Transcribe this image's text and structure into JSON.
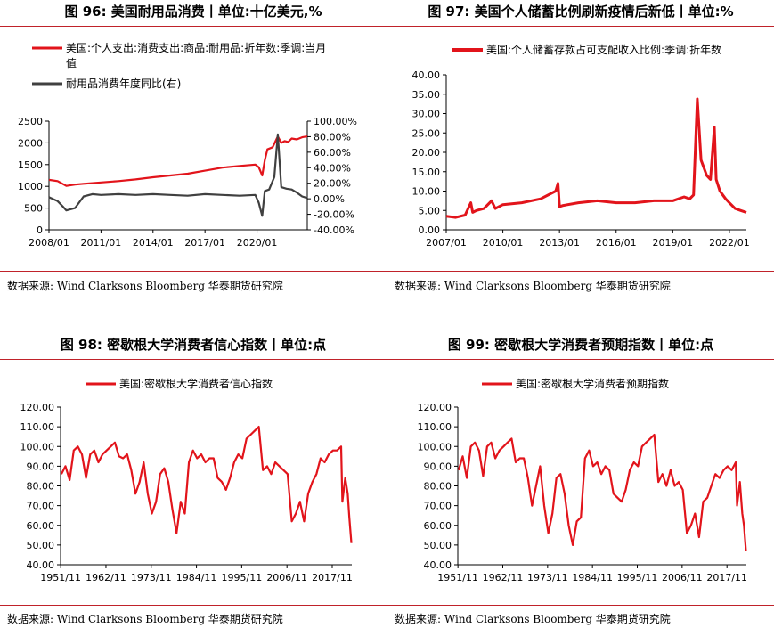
{
  "source_text": "数据来源:   Wind Clarksons Bloomberg 华泰期货研究院",
  "panels": [
    {
      "title": "图 96:   美国耐用品消费丨单位:十亿美元,%"
    },
    {
      "title": "图 97:   美国个人储蓄比例刷新疫情后新低丨单位:%"
    },
    {
      "title": "图 98:   密歇根大学消费者信心指数丨单位:点"
    },
    {
      "title": "图 99:   密歇根大学消费者预期指数丨单位:点"
    }
  ],
  "colors": {
    "red": "#e2141b",
    "dark": "#404040",
    "rule": "#c0222a"
  },
  "chart_data": [
    {
      "type": "line",
      "title": "",
      "x_ticks": [
        "2008/01",
        "2011/01",
        "2014/01",
        "2017/01",
        "2020/01"
      ],
      "xlim": [
        2008.0,
        2022.9
      ],
      "y_ticks": [
        "0",
        "500",
        "1000",
        "1500",
        "2000",
        "2500"
      ],
      "ylim": [
        0,
        2500
      ],
      "y2_ticks": [
        "-40.00%",
        "-20.00%",
        "0.00%",
        "20.00%",
        "40.00%",
        "60.00%",
        "80.00%",
        "100.00%"
      ],
      "y2lim": [
        -40,
        100
      ],
      "legend": "top-left",
      "series": [
        {
          "name": "美国:个人支出:消费支出:商品:耐用品:折年数:季调:当月值",
          "axis": "left",
          "color": "#e2141b",
          "x": [
            2008.0,
            2008.5,
            2009.0,
            2009.5,
            2010.0,
            2011.0,
            2012.0,
            2013.0,
            2014.0,
            2015.0,
            2016.0,
            2017.0,
            2018.0,
            2019.0,
            2019.9,
            2020.1,
            2020.3,
            2020.45,
            2020.6,
            2020.9,
            2021.0,
            2021.2,
            2021.4,
            2021.6,
            2021.8,
            2022.0,
            2022.3,
            2022.6,
            2022.9
          ],
          "y": [
            1150,
            1120,
            1010,
            1040,
            1060,
            1090,
            1120,
            1160,
            1210,
            1250,
            1290,
            1360,
            1430,
            1470,
            1500,
            1440,
            1250,
            1600,
            1850,
            1900,
            1980,
            2150,
            2000,
            2040,
            2020,
            2100,
            2080,
            2130,
            2150
          ]
        },
        {
          "name": "耐用品消费年度同比(右)",
          "axis": "right",
          "color": "#404040",
          "x": [
            2008.0,
            2008.5,
            2008.8,
            2009.0,
            2009.5,
            2010.0,
            2010.5,
            2011.0,
            2012.0,
            2013.0,
            2014.0,
            2015.0,
            2016.0,
            2017.0,
            2018.0,
            2019.0,
            2019.9,
            2020.1,
            2020.3,
            2020.45,
            2020.7,
            2021.0,
            2021.2,
            2021.4,
            2021.7,
            2022.0,
            2022.3,
            2022.6,
            2022.9
          ],
          "y": [
            2,
            -3,
            -10,
            -15,
            -12,
            3,
            6,
            5,
            6,
            5,
            6,
            5,
            4,
            6,
            5,
            4,
            5,
            -5,
            -22,
            10,
            12,
            28,
            83,
            15,
            13,
            12,
            8,
            3,
            1
          ]
        }
      ]
    },
    {
      "type": "line",
      "title": "",
      "x_ticks": [
        "2007/01",
        "2010/01",
        "2013/01",
        "2016/01",
        "2019/01",
        "2022/01"
      ],
      "xlim": [
        2007.0,
        2022.9
      ],
      "y_ticks": [
        "0.00",
        "5.00",
        "10.00",
        "15.00",
        "20.00",
        "25.00",
        "30.00",
        "35.00",
        "40.00"
      ],
      "ylim": [
        0,
        40
      ],
      "legend": "top-center",
      "series": [
        {
          "name": "美国:个人储蓄存款占可支配收入比例:季调:折年数",
          "color": "#e2141b",
          "x": [
            2007.0,
            2007.5,
            2008.0,
            2008.3,
            2008.4,
            2008.6,
            2009.0,
            2009.4,
            2009.6,
            2010.0,
            2011.0,
            2012.0,
            2012.8,
            2012.92,
            2013.0,
            2013.2,
            2014.0,
            2015.0,
            2016.0,
            2017.0,
            2018.0,
            2019.0,
            2019.6,
            2019.9,
            2020.1,
            2020.3,
            2020.5,
            2020.8,
            2021.0,
            2021.2,
            2021.3,
            2021.5,
            2021.8,
            2022.0,
            2022.3,
            2022.6,
            2022.9
          ],
          "y": [
            3.5,
            3.2,
            3.8,
            7.0,
            4.5,
            5.0,
            5.5,
            7.5,
            5.5,
            6.5,
            7.0,
            8.0,
            10.0,
            12.0,
            6.0,
            6.3,
            7.0,
            7.5,
            7.0,
            7.0,
            7.5,
            7.5,
            8.5,
            8.0,
            9.0,
            33.8,
            18.0,
            14.0,
            13.0,
            26.5,
            13.0,
            10.0,
            8.0,
            7.0,
            5.5,
            5.0,
            4.5
          ]
        }
      ]
    },
    {
      "type": "line",
      "title": "",
      "x_ticks": [
        "1951/11",
        "1962/11",
        "1973/11",
        "1984/11",
        "1995/11",
        "2006/11",
        "2017/11"
      ],
      "xlim": [
        1951.8,
        2022.6
      ],
      "y_ticks": [
        "40.00",
        "50.00",
        "60.00",
        "70.00",
        "80.00",
        "90.00",
        "100.00",
        "110.00",
        "120.00"
      ],
      "ylim": [
        40,
        120
      ],
      "legend": "top-center",
      "series": [
        {
          "name": "美国:密歇根大学消费者信心指数",
          "color": "#e2141b",
          "x": [
            1952.0,
            1953.0,
            1954.0,
            1955.0,
            1956.0,
            1957.0,
            1958.0,
            1959.0,
            1960.0,
            1961.0,
            1962.0,
            1963.0,
            1964.0,
            1965.0,
            1966.0,
            1967.0,
            1968.0,
            1969.0,
            1970.0,
            1971.0,
            1972.0,
            1973.0,
            1974.0,
            1975.0,
            1976.0,
            1977.0,
            1978.0,
            1979.0,
            1980.0,
            1981.0,
            1982.0,
            1983.0,
            1984.0,
            1985.0,
            1986.0,
            1987.0,
            1988.0,
            1989.0,
            1990.0,
            1991.0,
            1992.0,
            1993.0,
            1994.0,
            1995.0,
            1996.0,
            1997.0,
            1998.0,
            1999.0,
            2000.0,
            2001.0,
            2002.0,
            2003.0,
            2004.0,
            2005.0,
            2006.0,
            2007.0,
            2008.0,
            2009.0,
            2010.0,
            2011.0,
            2012.0,
            2013.0,
            2014.0,
            2015.0,
            2016.0,
            2017.0,
            2018.0,
            2019.0,
            2020.0,
            2020.3,
            2021.0,
            2021.6,
            2022.0,
            2022.5
          ],
          "y": [
            86,
            90,
            83,
            98,
            100,
            96,
            84,
            96,
            98,
            92,
            96,
            98,
            100,
            102,
            95,
            94,
            96,
            88,
            76,
            82,
            92,
            76,
            66,
            72,
            86,
            89,
            82,
            68,
            56,
            72,
            66,
            92,
            98,
            94,
            96,
            92,
            94,
            94,
            84,
            82,
            78,
            84,
            92,
            96,
            94,
            104,
            106,
            108,
            110,
            88,
            90,
            86,
            92,
            90,
            88,
            86,
            62,
            66,
            72,
            62,
            76,
            82,
            86,
            94,
            92,
            96,
            98,
            98,
            100,
            72,
            84,
            76,
            64,
            51
          ]
        }
      ]
    },
    {
      "type": "line",
      "title": "",
      "x_ticks": [
        "1951/11",
        "1962/11",
        "1973/11",
        "1984/11",
        "1995/11",
        "2006/11",
        "2017/11"
      ],
      "xlim": [
        1951.8,
        2022.6
      ],
      "y_ticks": [
        "40.00",
        "50.00",
        "60.00",
        "70.00",
        "80.00",
        "90.00",
        "100.00",
        "110.00",
        "120.00"
      ],
      "ylim": [
        40,
        120
      ],
      "legend": "top-center",
      "series": [
        {
          "name": "美国:密歇根大学消费者预期指数",
          "color": "#e2141b",
          "x": [
            1952.0,
            1953.0,
            1954.0,
            1955.0,
            1956.0,
            1957.0,
            1958.0,
            1959.0,
            1960.0,
            1961.0,
            1962.0,
            1963.0,
            1964.0,
            1965.0,
            1966.0,
            1967.0,
            1968.0,
            1969.0,
            1970.0,
            1971.0,
            1972.0,
            1973.0,
            1974.0,
            1975.0,
            1976.0,
            1977.0,
            1978.0,
            1979.0,
            1980.0,
            1981.0,
            1982.0,
            1983.0,
            1984.0,
            1985.0,
            1986.0,
            1987.0,
            1988.0,
            1989.0,
            1990.0,
            1991.0,
            1992.0,
            1993.0,
            1994.0,
            1995.0,
            1996.0,
            1997.0,
            1998.0,
            1999.0,
            2000.0,
            2001.0,
            2002.0,
            2003.0,
            2004.0,
            2005.0,
            2006.0,
            2007.0,
            2008.0,
            2009.0,
            2010.0,
            2011.0,
            2012.0,
            2013.0,
            2014.0,
            2015.0,
            2016.0,
            2017.0,
            2018.0,
            2019.0,
            2020.0,
            2020.3,
            2021.0,
            2021.6,
            2022.0,
            2022.5
          ],
          "y": [
            88,
            95,
            84,
            100,
            102,
            98,
            85,
            100,
            102,
            94,
            98,
            100,
            102,
            104,
            92,
            94,
            94,
            84,
            70,
            80,
            90,
            70,
            56,
            66,
            84,
            86,
            76,
            60,
            50,
            62,
            64,
            94,
            98,
            90,
            92,
            86,
            90,
            88,
            76,
            74,
            72,
            78,
            88,
            92,
            90,
            100,
            102,
            104,
            106,
            82,
            86,
            80,
            88,
            80,
            82,
            78,
            56,
            60,
            66,
            54,
            72,
            74,
            80,
            86,
            84,
            88,
            90,
            88,
            92,
            70,
            82,
            66,
            60,
            47
          ]
        }
      ]
    }
  ]
}
